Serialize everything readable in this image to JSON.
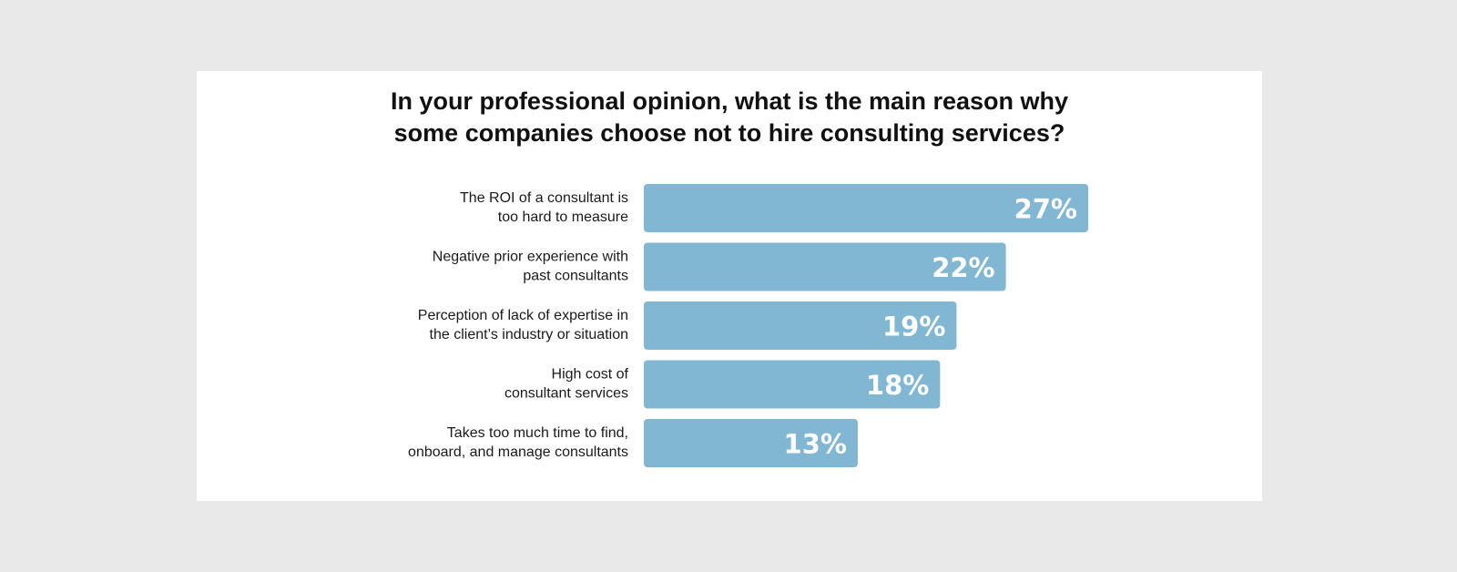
{
  "colors": {
    "background": "#e9e9e9",
    "card": "#ffffff",
    "bar": "#82b7d4",
    "bar_text": "#ffffff",
    "text": "#111111"
  },
  "chart_data": {
    "type": "bar",
    "orientation": "horizontal",
    "title": "In your professional opinion, what is the main reason why some companies choose not to hire consulting services?",
    "title_lines": [
      "In your professional opinion, what is the main reason why",
      "some companies choose not to hire consulting services?"
    ],
    "categories": [
      "The ROI of a consultant is too hard to measure",
      "Negative prior experience with past consultants",
      "Perception of lack of expertise in the client’s industry or situation",
      "High cost of consultant services",
      "Takes too much time to find, onboard, and manage consultants"
    ],
    "category_lines": [
      [
        "The ROI of a consultant is",
        "too hard to measure"
      ],
      [
        "Negative prior experience with",
        "past consultants"
      ],
      [
        "Perception of lack of expertise in",
        "the client’s industry or situation"
      ],
      [
        "High cost of",
        "consultant services"
      ],
      [
        "Takes too much time to find,",
        "onboard, and manage consultants"
      ]
    ],
    "values": [
      27,
      22,
      19,
      18,
      13
    ],
    "value_labels": [
      "27%",
      "22%",
      "19%",
      "18%",
      "13%"
    ],
    "unit": "%",
    "xlim": [
      0,
      27
    ],
    "grid": false,
    "legend": "none"
  }
}
